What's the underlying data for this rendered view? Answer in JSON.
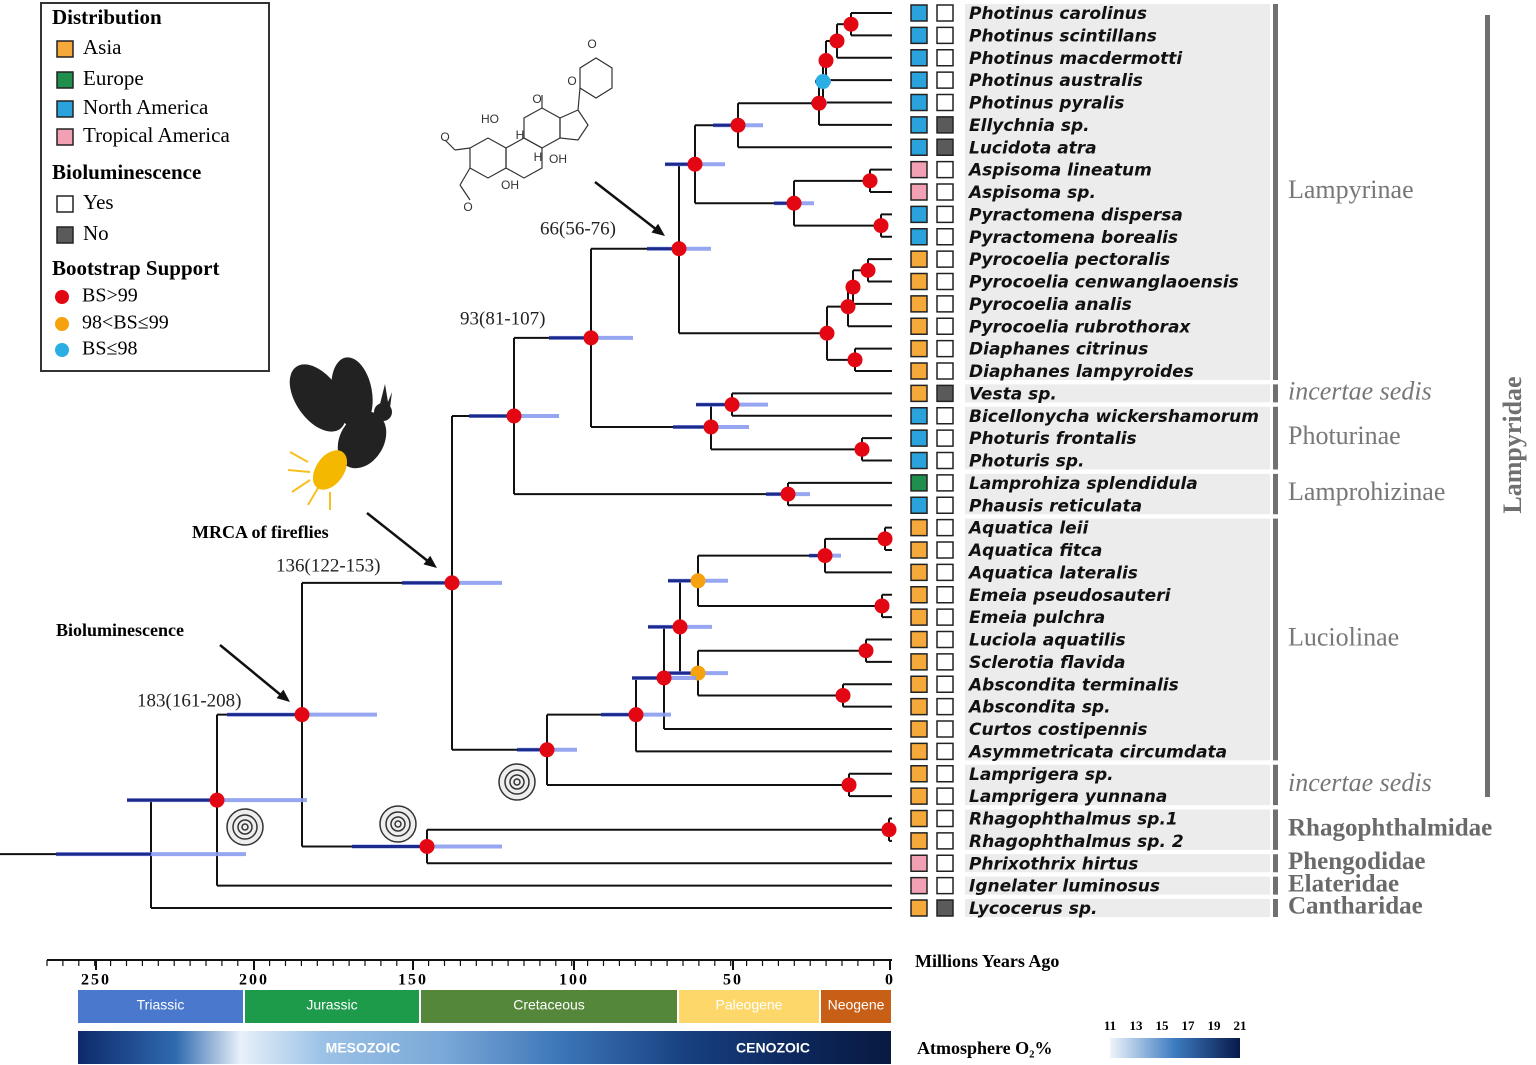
{
  "legend": {
    "distribution": {
      "title": "Distribution",
      "items": [
        {
          "label": "Asia",
          "color": "#f5a93b"
        },
        {
          "label": "Europe",
          "color": "#1f8f4e"
        },
        {
          "label": "North America",
          "color": "#2aa3dc"
        },
        {
          "label": "Tropical America",
          "color": "#f2a1b4"
        }
      ]
    },
    "bioluminescence": {
      "title": "Bioluminescence",
      "items": [
        {
          "label": "Yes",
          "color": "#ffffff"
        },
        {
          "label": "No",
          "color": "#5a5a5a"
        }
      ]
    },
    "bootstrap": {
      "title": "Bootstrap Support",
      "items": [
        {
          "label": "BS>99",
          "color": "#e30613"
        },
        {
          "label": "98<BS≤99",
          "color": "#f5a20e"
        },
        {
          "label": "BS≤98",
          "color": "#2aaee4"
        }
      ]
    }
  },
  "groups": [
    {
      "label": "Lampyrinae",
      "style": "plain",
      "taxa": [
        {
          "name": "Photinus carolinus",
          "region_color": "#2aa3dc",
          "lum_color": "#ffffff"
        },
        {
          "name": "Photinus scintillans",
          "region_color": "#2aa3dc",
          "lum_color": "#ffffff"
        },
        {
          "name": "Photinus macdermotti",
          "region_color": "#2aa3dc",
          "lum_color": "#ffffff"
        },
        {
          "name": "Photinus australis",
          "region_color": "#2aa3dc",
          "lum_color": "#ffffff"
        },
        {
          "name": "Photinus pyralis",
          "region_color": "#2aa3dc",
          "lum_color": "#ffffff"
        },
        {
          "name": "Ellychnia sp.",
          "region_color": "#2aa3dc",
          "lum_color": "#5a5a5a"
        },
        {
          "name": "Lucidota atra",
          "region_color": "#2aa3dc",
          "lum_color": "#5a5a5a"
        },
        {
          "name": "Aspisoma lineatum",
          "region_color": "#f2a1b4",
          "lum_color": "#ffffff"
        },
        {
          "name": "Aspisoma sp.",
          "region_color": "#f2a1b4",
          "lum_color": "#ffffff"
        },
        {
          "name": "Pyractomena dispersa",
          "region_color": "#2aa3dc",
          "lum_color": "#ffffff"
        },
        {
          "name": "Pyractomena borealis",
          "region_color": "#2aa3dc",
          "lum_color": "#ffffff"
        },
        {
          "name": "Pyrocoelia pectoralis",
          "region_color": "#f5a93b",
          "lum_color": "#ffffff"
        },
        {
          "name": "Pyrocoelia cenwanglaoensis",
          "region_color": "#f5a93b",
          "lum_color": "#ffffff"
        },
        {
          "name": "Pyrocoelia analis",
          "region_color": "#f5a93b",
          "lum_color": "#ffffff"
        },
        {
          "name": "Pyrocoelia rubrothorax",
          "region_color": "#f5a93b",
          "lum_color": "#ffffff"
        },
        {
          "name": "Diaphanes citrinus",
          "region_color": "#f5a93b",
          "lum_color": "#ffffff"
        },
        {
          "name": "Diaphanes lampyroides",
          "region_color": "#f5a93b",
          "lum_color": "#ffffff"
        }
      ]
    },
    {
      "label": "incertae sedis",
      "style": "italic",
      "taxa": [
        {
          "name": "Vesta sp.",
          "region_color": "#f5a93b",
          "lum_color": "#5a5a5a"
        }
      ]
    },
    {
      "label": "Photurinae",
      "style": "plain",
      "taxa": [
        {
          "name": "Bicellonycha wickershamorum",
          "region_color": "#2aa3dc",
          "lum_color": "#ffffff"
        },
        {
          "name": "Photuris frontalis",
          "region_color": "#2aa3dc",
          "lum_color": "#ffffff"
        },
        {
          "name": "Photuris sp.",
          "region_color": "#2aa3dc",
          "lum_color": "#ffffff"
        }
      ]
    },
    {
      "label": "Lamprohizinae",
      "style": "plain",
      "taxa": [
        {
          "name": "Lamprohiza splendidula",
          "region_color": "#1f8f4e",
          "lum_color": "#ffffff"
        },
        {
          "name": "Phausis reticulata",
          "region_color": "#2aa3dc",
          "lum_color": "#ffffff"
        }
      ]
    },
    {
      "label": "Luciolinae",
      "style": "plain",
      "taxa": [
        {
          "name": "Aquatica leii",
          "region_color": "#f5a93b",
          "lum_color": "#ffffff"
        },
        {
          "name": "Aquatica fitca",
          "region_color": "#f5a93b",
          "lum_color": "#ffffff"
        },
        {
          "name": "Aquatica lateralis",
          "region_color": "#f5a93b",
          "lum_color": "#ffffff"
        },
        {
          "name": "Emeia pseudosauteri",
          "region_color": "#f5a93b",
          "lum_color": "#ffffff"
        },
        {
          "name": "Emeia pulchra",
          "region_color": "#f5a93b",
          "lum_color": "#ffffff"
        },
        {
          "name": "Luciola aquatilis",
          "region_color": "#f5a93b",
          "lum_color": "#ffffff"
        },
        {
          "name": "Sclerotia flavida",
          "region_color": "#f5a93b",
          "lum_color": "#ffffff"
        },
        {
          "name": "Abscondita terminalis",
          "region_color": "#f5a93b",
          "lum_color": "#ffffff"
        },
        {
          "name": "Abscondita sp.",
          "region_color": "#f5a93b",
          "lum_color": "#ffffff"
        },
        {
          "name": "Curtos costipennis",
          "region_color": "#f5a93b",
          "lum_color": "#ffffff"
        },
        {
          "name": "Asymmetricata circumdata",
          "region_color": "#f5a93b",
          "lum_color": "#ffffff"
        }
      ]
    },
    {
      "label": "incertae sedis",
      "style": "italic",
      "taxa": [
        {
          "name": "Lamprigera sp.",
          "region_color": "#f5a93b",
          "lum_color": "#ffffff"
        },
        {
          "name": "Lamprigera yunnana",
          "region_color": "#f5a93b",
          "lum_color": "#ffffff"
        }
      ]
    },
    {
      "label": "Rhagophthalmidae",
      "style": "bold",
      "taxa": [
        {
          "name": "Rhagophthalmus sp.1",
          "region_color": "#f5a93b",
          "lum_color": "#ffffff"
        },
        {
          "name": "Rhagophthalmus sp. 2",
          "region_color": "#f5a93b",
          "lum_color": "#ffffff"
        }
      ]
    },
    {
      "label": "Phengodidae",
      "style": "bold",
      "taxa": [
        {
          "name": "Phrixothrix hirtus",
          "region_color": "#f2a1b4",
          "lum_color": "#ffffff"
        }
      ]
    },
    {
      "label": "Elateridae",
      "style": "bold",
      "taxa": [
        {
          "name": "Ignelater luminosus",
          "region_color": "#f2a1b4",
          "lum_color": "#ffffff"
        }
      ]
    },
    {
      "label": "Cantharidae",
      "style": "bold",
      "taxa": [
        {
          "name": "Lycocerus sp.",
          "region_color": "#f5a93b",
          "lum_color": "#5a5a5a"
        }
      ]
    }
  ],
  "family_label": "Lampyridae",
  "node_ages": [
    "66(56-76)",
    "93(81-107)",
    "136(122-153)",
    "183(161-208)"
  ],
  "annotations": [
    "MRCA of fireflies",
    "Bioluminescence"
  ],
  "molecule_labels": [
    "HO",
    "O",
    "H",
    "H",
    "OH",
    "OH",
    "O",
    "O",
    "O",
    "O"
  ],
  "timescale": {
    "title": "Millions Years Ago",
    "ticks": [
      "250",
      "200",
      "150",
      "100",
      "50",
      "0"
    ],
    "periods": [
      {
        "label": "Triassic",
        "color": "#4a78cc"
      },
      {
        "label": "Jurassic",
        "color": "#1d9a4a"
      },
      {
        "label": "Cretaceous",
        "color": "#55873a"
      },
      {
        "label": "Paleogene",
        "color": "#fdd76a"
      },
      {
        "label": "Neogene",
        "color": "#c85f17"
      }
    ],
    "eras": [
      "MESOZOIC",
      "CENOZOIC"
    ],
    "oxygen_title": "Atmosphere O₂%",
    "oxygen_ticks": [
      "11",
      "13",
      "15",
      "17",
      "19",
      "21"
    ]
  }
}
